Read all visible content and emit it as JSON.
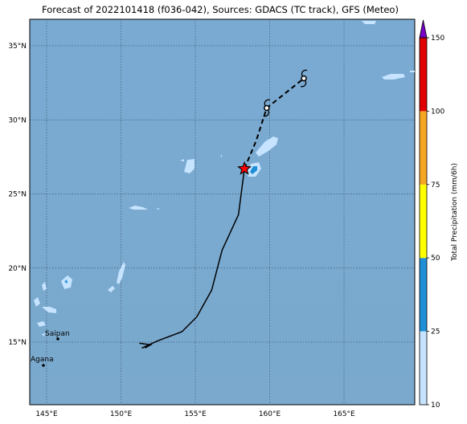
{
  "title": "Forecast of 2022101418 (f036-042), Sources: GDACS (TC track), GFS (Meteo)",
  "map": {
    "lon_ticks": [
      "145°E",
      "150°E",
      "155°E",
      "160°E",
      "165°E"
    ],
    "lat_ticks": [
      "35°N",
      "30°N",
      "25°N",
      "20°N",
      "15°N"
    ],
    "places": [
      {
        "name": "Saipan"
      },
      {
        "name": "Agana"
      }
    ],
    "colors": {
      "ocean": "#79a8cf",
      "precip_light": "#c6e3ff",
      "precip_medium": "#1e8fd6",
      "track": "#000000",
      "current_position": "#ff0000"
    },
    "track": {
      "past_solid": [
        [
          151.4,
          14.6
        ],
        [
          152.5,
          15.1
        ],
        [
          154.1,
          15.7
        ],
        [
          155.1,
          16.7
        ],
        [
          156.1,
          18.5
        ],
        [
          156.8,
          21.2
        ],
        [
          157.9,
          23.6
        ],
        [
          158.3,
          26.7
        ]
      ],
      "forecast_dashed": [
        [
          158.3,
          26.7
        ],
        [
          159.1,
          28.6
        ],
        [
          159.8,
          30.8
        ],
        [
          162.3,
          32.8
        ]
      ],
      "current_position": [
        158.3,
        26.7
      ],
      "forecast_symbols": [
        [
          159.8,
          30.8
        ],
        [
          162.3,
          32.8
        ]
      ]
    }
  },
  "colorbar": {
    "label": "Total Precipitation (mm/6h)",
    "ticks": [
      "10",
      "25",
      "50",
      "75",
      "100",
      "150"
    ],
    "segments": [
      {
        "color": "#c6e3ff"
      },
      {
        "color": "#1e8fd6"
      },
      {
        "color": "#ffff00"
      },
      {
        "color": "#f5a623"
      },
      {
        "color": "#e00000"
      },
      {
        "color": "#7a00c8"
      }
    ]
  }
}
